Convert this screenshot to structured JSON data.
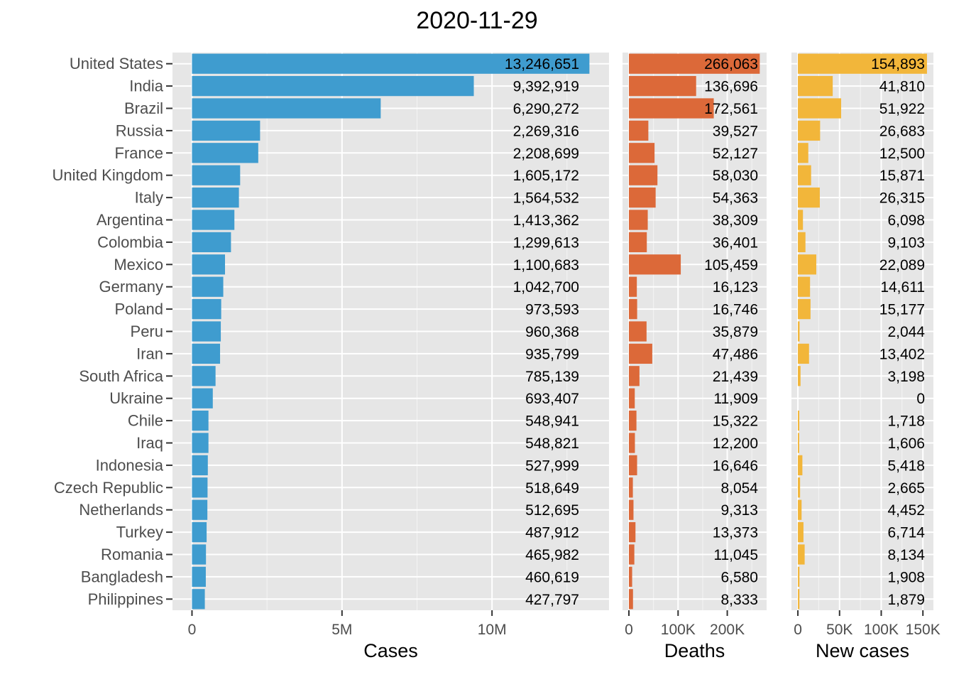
{
  "chart_data": {
    "type": "bar",
    "orientation": "horizontal",
    "title": "2020-11-29",
    "categories": [
      "United States",
      "India",
      "Brazil",
      "Russia",
      "France",
      "United Kingdom",
      "Italy",
      "Argentina",
      "Colombia",
      "Mexico",
      "Germany",
      "Poland",
      "Peru",
      "Iran",
      "South Africa",
      "Ukraine",
      "Chile",
      "Iraq",
      "Indonesia",
      "Czech Republic",
      "Netherlands",
      "Turkey",
      "Romania",
      "Bangladesh",
      "Philippines"
    ],
    "grid": true,
    "series": [
      {
        "name": "Cases",
        "color": "#3f9ccf",
        "xlabel": "Cases",
        "xlim": [
          -650000,
          13900000
        ],
        "ticks": [
          0,
          5000000,
          10000000
        ],
        "tick_labels": [
          "0",
          "5M",
          "10M"
        ],
        "values": [
          13246651,
          9392919,
          6290272,
          2269316,
          2208699,
          1605172,
          1564532,
          1413362,
          1299613,
          1100683,
          1042700,
          973593,
          960368,
          935799,
          785139,
          693407,
          548941,
          548821,
          527999,
          518649,
          512695,
          487912,
          465982,
          460619,
          427797
        ],
        "labels": [
          "13,246,651",
          "9,392,919",
          "6,290,272",
          "2,269,316",
          "2,208,699",
          "1,605,172",
          "1,564,532",
          "1,413,362",
          "1,299,613",
          "1,100,683",
          "1,042,700",
          "973,593",
          "960,368",
          "935,799",
          "785,139",
          "693,407",
          "548,941",
          "548,821",
          "527,999",
          "518,649",
          "512,695",
          "487,912",
          "465,982",
          "460,619",
          "427,797"
        ]
      },
      {
        "name": "Deaths",
        "color": "#dc6939",
        "xlabel": "Deaths",
        "xlim": [
          -13000,
          280000
        ],
        "ticks": [
          0,
          100000,
          200000
        ],
        "tick_labels": [
          "0",
          "100K",
          "200K"
        ],
        "values": [
          266063,
          136696,
          172561,
          39527,
          52127,
          58030,
          54363,
          38309,
          36401,
          105459,
          16123,
          16746,
          35879,
          47486,
          21439,
          11909,
          15322,
          12200,
          16646,
          8054,
          9313,
          13373,
          11045,
          6580,
          8333
        ],
        "labels": [
          "266,063",
          "136,696",
          "172,561",
          "39,527",
          "52,127",
          "58,030",
          "54,363",
          "38,309",
          "36,401",
          "105,459",
          "16,123",
          "16,746",
          "35,879",
          "47,486",
          "21,439",
          "11,909",
          "15,322",
          "12,200",
          "16,646",
          "8,054",
          "9,313",
          "13,373",
          "11,045",
          "6,580",
          "8,333"
        ]
      },
      {
        "name": "New cases",
        "color": "#f2b63a",
        "xlabel": "New cases",
        "xlim": [
          -7700,
          162600
        ],
        "ticks": [
          0,
          50000,
          100000,
          150000
        ],
        "tick_labels": [
          "0",
          "50K",
          "100K",
          "150K"
        ],
        "values": [
          154893,
          41810,
          51922,
          26683,
          12500,
          15871,
          26315,
          6098,
          9103,
          22089,
          14611,
          15177,
          2044,
          13402,
          3198,
          0,
          1718,
          1606,
          5418,
          2665,
          4452,
          6714,
          8134,
          1908,
          1879
        ],
        "labels": [
          "154,893",
          "41,810",
          "51,922",
          "26,683",
          "12,500",
          "15,871",
          "26,315",
          "6,098",
          "9,103",
          "22,089",
          "14,611",
          "15,177",
          "2,044",
          "13,402",
          "3,198",
          "0",
          "1,718",
          "1,606",
          "5,418",
          "2,665",
          "4,452",
          "6,714",
          "8,134",
          "1,908",
          "1,879"
        ]
      }
    ]
  }
}
